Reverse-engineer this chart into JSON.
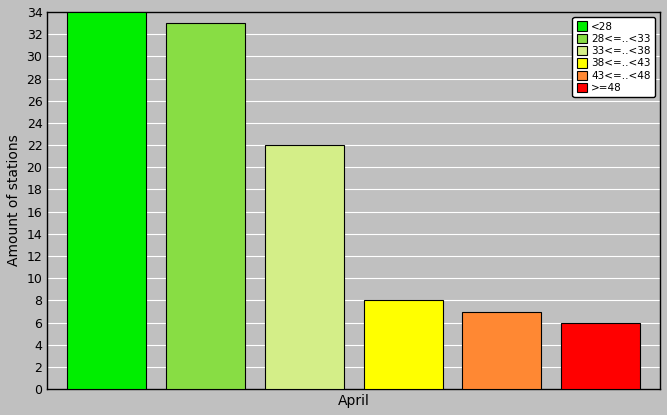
{
  "categories": [
    "April"
  ],
  "bars": [
    {
      "label": "<28",
      "value": 34,
      "color": "#00ee00"
    },
    {
      "label": "28<=..<33",
      "value": 33,
      "color": "#88dd44"
    },
    {
      "label": "33<=..<38",
      "value": 22,
      "color": "#d4ee88"
    },
    {
      "label": "38<=..<43",
      "value": 8,
      "color": "#ffff00"
    },
    {
      "label": "43<=..<48",
      "value": 7,
      "color": "#ff8833"
    },
    {
      "label": ">=48",
      "value": 6,
      "color": "#ff0000"
    }
  ],
  "ylabel": "Amount of stations",
  "xlabel": "April",
  "ylim": [
    0,
    34
  ],
  "yticks": [
    0,
    2,
    4,
    6,
    8,
    10,
    12,
    14,
    16,
    18,
    20,
    22,
    24,
    26,
    28,
    30,
    32,
    34
  ],
  "bg_color": "#c0c0c0",
  "plot_bg_color": "#c0c0c0",
  "grid_color": "#ffffff",
  "legend_colors": [
    "#00ee00",
    "#88dd44",
    "#d4ee88",
    "#ffff00",
    "#ff8833",
    "#ff0000"
  ],
  "legend_labels": [
    "<28",
    "28<=..<33",
    "33<=..<38",
    "38<=..<43",
    "43<=..<48",
    ">=48"
  ],
  "bar_width": 0.8,
  "bar_spacing": 1.0
}
